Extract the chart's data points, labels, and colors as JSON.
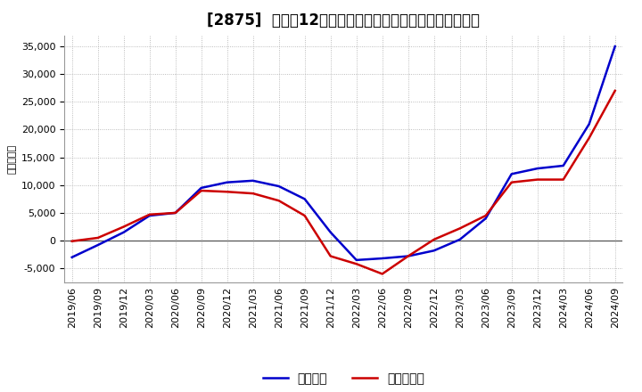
{
  "title": "[2875]  利益だ12か月移動合計の対前年同期増減額の推移",
  "ylabel": "（百万円）",
  "background_color": "#ffffff",
  "grid_color": "#aaaaaa",
  "ylim": [
    -7500,
    37000
  ],
  "yticks": [
    -5000,
    0,
    5000,
    10000,
    15000,
    20000,
    25000,
    30000,
    35000
  ],
  "line1_label": "経常利益",
  "line1_color": "#0000cc",
  "line2_label": "当期純利益",
  "line2_color": "#cc0000",
  "x_labels": [
    "2019/06",
    "2019/09",
    "2019/12",
    "2020/03",
    "2020/06",
    "2020/09",
    "2020/12",
    "2021/03",
    "2021/06",
    "2021/09",
    "2021/12",
    "2022/03",
    "2022/06",
    "2022/09",
    "2022/12",
    "2023/03",
    "2023/06",
    "2023/09",
    "2023/12",
    "2024/03",
    "2024/06",
    "2024/09"
  ],
  "line1_y": [
    -3000,
    -800,
    1500,
    4500,
    5000,
    9500,
    10500,
    10800,
    9800,
    7500,
    1500,
    -3500,
    -3200,
    -2800,
    -1800,
    200,
    4000,
    12000,
    13000,
    13500,
    21000,
    35000
  ],
  "line2_y": [
    -100,
    500,
    2500,
    4700,
    5000,
    9000,
    8800,
    8500,
    7200,
    4500,
    -2800,
    -4200,
    -6000,
    -2800,
    200,
    2200,
    4500,
    10500,
    11000,
    11000,
    18500,
    27000
  ],
  "title_fontsize": 12,
  "axis_fontsize": 8,
  "legend_fontsize": 10,
  "line_width": 1.8
}
